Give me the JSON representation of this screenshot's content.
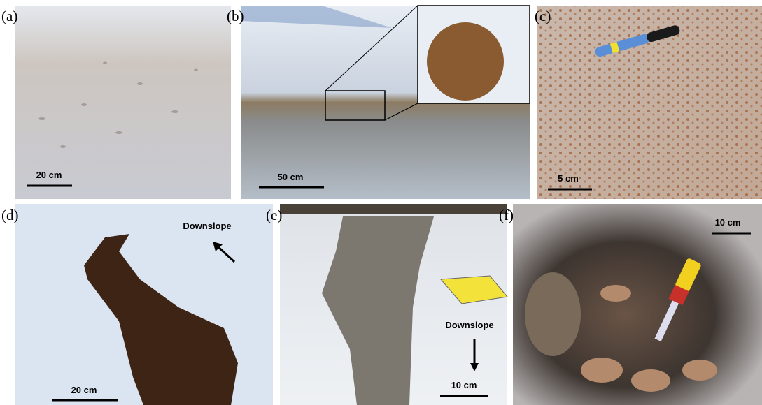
{
  "panels": [
    {
      "label": "(a)",
      "scale": "20 cm"
    },
    {
      "label": "(b)",
      "scale": "50 cm"
    },
    {
      "label": "(c)",
      "scale": "5 cm"
    },
    {
      "label": "(d)",
      "scale": "20 cm",
      "annotation": "Downslope"
    },
    {
      "label": "(e)",
      "scale": "10 cm",
      "annotation": "Downslope"
    },
    {
      "label": "(f)",
      "scale": "10 cm"
    }
  ]
}
